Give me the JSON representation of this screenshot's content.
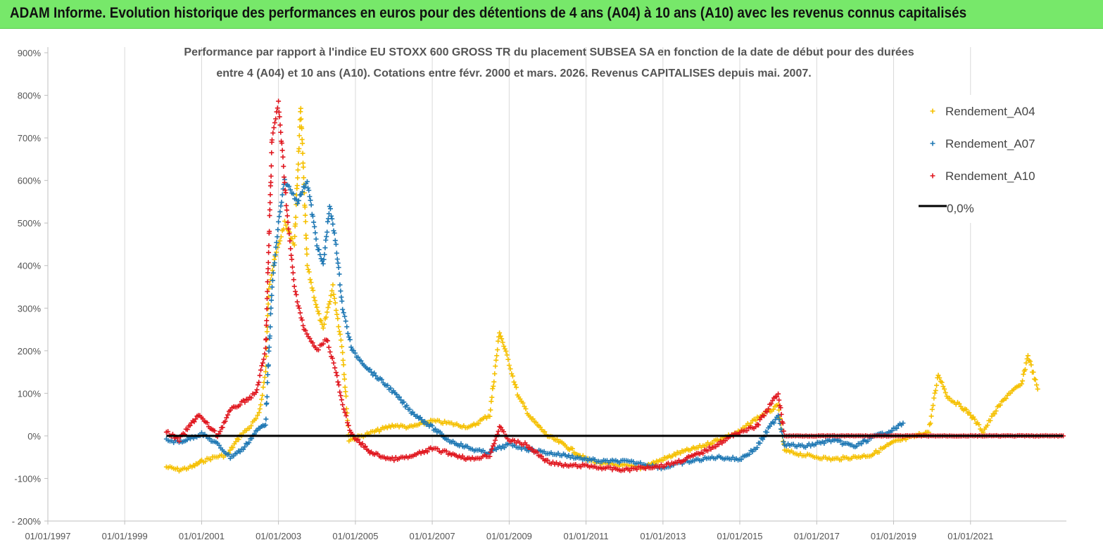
{
  "header": {
    "banner_title": "ADAM Informe. Evolution historique des performances en euros pour des détentions de 4 ans (A04) à 10 ans (A10) avec les revenus connus capitalisés"
  },
  "chart_data": {
    "type": "scatter",
    "title_line1": "Performance par rapport à l'indice EU STOXX 600 GROSS TR  du placement SUBSEA SA en fonction de la date de début pour des durées",
    "title_line2": "entre 4 (A04) et 10 ans (A10). Cotations entre févr. 2000 et mars. 2026. Revenus CAPITALISES depuis mai. 2007.",
    "ylim": [
      -200,
      900
    ],
    "yticks": [
      -200,
      -100,
      0,
      100,
      200,
      300,
      400,
      500,
      600,
      700,
      800,
      900
    ],
    "ytick_labels": [
      "- 200%",
      "-100%",
      "0%",
      "100%",
      "200%",
      "300%",
      "400%",
      "500%",
      "600%",
      "700%",
      "800%",
      "900%"
    ],
    "xlim": [
      "1997-01-01",
      "2023-07-01"
    ],
    "xtick_labels": [
      "01/01/1997",
      "01/01/1999",
      "01/01/2001",
      "01/01/2003",
      "01/01/2005",
      "01/01/2007",
      "01/01/2009",
      "01/01/2011",
      "01/01/2013",
      "01/01/2015",
      "01/01/2017",
      "01/01/2019",
      "01/01/2021"
    ],
    "grid": "vertical",
    "legend_position": "top-right",
    "series": [
      {
        "name": "Rendement_A04",
        "color": "#f5c000",
        "marker": "plus",
        "points": [
          [
            "2000-02-01",
            -73
          ],
          [
            "2000-06-01",
            -80
          ],
          [
            "2000-10-01",
            -73
          ],
          [
            "2001-01-01",
            -60
          ],
          [
            "2001-05-01",
            -50
          ],
          [
            "2001-09-01",
            -45
          ],
          [
            "2002-01-01",
            0
          ],
          [
            "2002-04-01",
            20
          ],
          [
            "2002-07-01",
            50
          ],
          [
            "2002-09-01",
            150
          ],
          [
            "2002-10-01",
            350
          ],
          [
            "2002-12-01",
            420
          ],
          [
            "2003-03-01",
            500
          ],
          [
            "2003-06-01",
            450
          ],
          [
            "2003-08-01",
            770
          ],
          [
            "2003-10-01",
            400
          ],
          [
            "2004-01-01",
            300
          ],
          [
            "2004-03-01",
            250
          ],
          [
            "2004-06-01",
            350
          ],
          [
            "2004-09-01",
            200
          ],
          [
            "2004-11-01",
            -10
          ],
          [
            "2005-03-01",
            0
          ],
          [
            "2005-07-01",
            10
          ],
          [
            "2006-01-01",
            25
          ],
          [
            "2006-06-01",
            20
          ],
          [
            "2007-01-01",
            35
          ],
          [
            "2007-06-01",
            30
          ],
          [
            "2008-01-01",
            20
          ],
          [
            "2008-07-01",
            50
          ],
          [
            "2008-10-01",
            245
          ],
          [
            "2009-01-01",
            170
          ],
          [
            "2009-04-01",
            90
          ],
          [
            "2009-08-01",
            40
          ],
          [
            "2010-01-01",
            0
          ],
          [
            "2010-06-01",
            -20
          ],
          [
            "2011-01-01",
            -55
          ],
          [
            "2011-06-01",
            -65
          ],
          [
            "2012-01-01",
            -70
          ],
          [
            "2012-06-01",
            -75
          ],
          [
            "2013-01-01",
            -55
          ],
          [
            "2013-06-01",
            -40
          ],
          [
            "2014-01-01",
            -25
          ],
          [
            "2014-06-01",
            -10
          ],
          [
            "2015-01-01",
            10
          ],
          [
            "2015-06-01",
            40
          ],
          [
            "2016-01-01",
            70
          ],
          [
            "2016-03-01",
            -35
          ],
          [
            "2016-09-01",
            -45
          ],
          [
            "2017-06-01",
            -55
          ],
          [
            "2018-01-01",
            -50
          ],
          [
            "2018-06-01",
            -45
          ],
          [
            "2019-01-01",
            -15
          ],
          [
            "2019-06-01",
            -5
          ],
          [
            "2019-12-01",
            10
          ],
          [
            "2020-03-01",
            145
          ],
          [
            "2020-06-01",
            90
          ],
          [
            "2020-10-01",
            70
          ],
          [
            "2021-01-01",
            50
          ],
          [
            "2021-05-01",
            10
          ],
          [
            "2021-09-01",
            60
          ],
          [
            "2022-01-01",
            100
          ],
          [
            "2022-05-01",
            120
          ],
          [
            "2022-07-01",
            190
          ],
          [
            "2022-10-01",
            110
          ]
        ]
      },
      {
        "name": "Rendement_A07",
        "color": "#1f78b4",
        "marker": "plus",
        "points": [
          [
            "2000-02-01",
            -10
          ],
          [
            "2000-06-01",
            -15
          ],
          [
            "2001-01-01",
            5
          ],
          [
            "2001-06-01",
            -20
          ],
          [
            "2001-10-01",
            -50
          ],
          [
            "2002-02-01",
            -30
          ],
          [
            "2002-06-01",
            10
          ],
          [
            "2002-09-01",
            30
          ],
          [
            "2002-11-01",
            350
          ],
          [
            "2003-01-01",
            500
          ],
          [
            "2003-03-01",
            600
          ],
          [
            "2003-07-01",
            550
          ],
          [
            "2003-10-01",
            600
          ],
          [
            "2004-01-01",
            450
          ],
          [
            "2004-03-01",
            400
          ],
          [
            "2004-05-01",
            540
          ],
          [
            "2004-07-01",
            450
          ],
          [
            "2004-09-01",
            300
          ],
          [
            "2004-12-01",
            200
          ],
          [
            "2005-06-01",
            150
          ],
          [
            "2005-12-01",
            110
          ],
          [
            "2006-06-01",
            60
          ],
          [
            "2007-01-01",
            20
          ],
          [
            "2007-06-01",
            -10
          ],
          [
            "2008-01-01",
            -30
          ],
          [
            "2008-06-01",
            -40
          ],
          [
            "2009-01-01",
            -20
          ],
          [
            "2009-06-01",
            -30
          ],
          [
            "2010-01-01",
            -40
          ],
          [
            "2010-06-01",
            -45
          ],
          [
            "2011-01-01",
            -55
          ],
          [
            "2011-06-01",
            -60
          ],
          [
            "2012-01-01",
            -60
          ],
          [
            "2012-06-01",
            -65
          ],
          [
            "2013-01-01",
            -75
          ],
          [
            "2013-06-01",
            -65
          ],
          [
            "2014-01-01",
            -55
          ],
          [
            "2014-06-01",
            -50
          ],
          [
            "2015-01-01",
            -55
          ],
          [
            "2015-06-01",
            -30
          ],
          [
            "2016-01-01",
            50
          ],
          [
            "2016-03-01",
            -20
          ],
          [
            "2016-09-01",
            -25
          ],
          [
            "2017-06-01",
            -10
          ],
          [
            "2018-01-01",
            -25
          ],
          [
            "2018-06-01",
            -5
          ],
          [
            "2019-01-01",
            15
          ],
          [
            "2019-04-01",
            30
          ]
        ]
      },
      {
        "name": "Rendement_A10",
        "color": "#e0171f",
        "marker": "plus",
        "points": [
          [
            "2000-02-01",
            10
          ],
          [
            "2000-06-01",
            -10
          ],
          [
            "2000-12-01",
            50
          ],
          [
            "2001-06-01",
            0
          ],
          [
            "2001-10-01",
            60
          ],
          [
            "2002-02-01",
            80
          ],
          [
            "2002-06-01",
            100
          ],
          [
            "2002-09-01",
            200
          ],
          [
            "2002-11-01",
            700
          ],
          [
            "2003-01-01",
            780
          ],
          [
            "2003-04-01",
            500
          ],
          [
            "2003-06-01",
            350
          ],
          [
            "2003-09-01",
            250
          ],
          [
            "2004-01-01",
            200
          ],
          [
            "2004-04-01",
            230
          ],
          [
            "2004-07-01",
            150
          ],
          [
            "2004-09-01",
            70
          ],
          [
            "2004-12-01",
            0
          ],
          [
            "2005-06-01",
            -40
          ],
          [
            "2005-12-01",
            -55
          ],
          [
            "2006-06-01",
            -50
          ],
          [
            "2007-01-01",
            -30
          ],
          [
            "2007-06-01",
            -40
          ],
          [
            "2008-01-01",
            -55
          ],
          [
            "2008-07-01",
            -45
          ],
          [
            "2008-10-01",
            20
          ],
          [
            "2009-01-01",
            -10
          ],
          [
            "2009-06-01",
            -20
          ],
          [
            "2010-01-01",
            -60
          ],
          [
            "2010-06-01",
            -70
          ],
          [
            "2011-01-01",
            -70
          ],
          [
            "2011-06-01",
            -75
          ],
          [
            "2012-01-01",
            -80
          ],
          [
            "2012-06-01",
            -75
          ],
          [
            "2013-01-01",
            -70
          ],
          [
            "2013-06-01",
            -60
          ],
          [
            "2014-01-01",
            -40
          ],
          [
            "2014-06-01",
            -20
          ],
          [
            "2015-01-01",
            10
          ],
          [
            "2015-06-01",
            20
          ],
          [
            "2016-01-01",
            100
          ],
          [
            "2016-03-01",
            0
          ],
          [
            "2017-01-01",
            0
          ],
          [
            "2018-01-01",
            0
          ],
          [
            "2019-01-01",
            0
          ],
          [
            "2020-01-01",
            0
          ],
          [
            "2021-01-01",
            0
          ],
          [
            "2022-01-01",
            0
          ],
          [
            "2023-06-01",
            0
          ]
        ]
      }
    ],
    "reference_line": {
      "name": "0,0%",
      "color": "#000000",
      "y": 0,
      "x_start": "2000-02-01",
      "x_end": "2023-06-01"
    }
  }
}
